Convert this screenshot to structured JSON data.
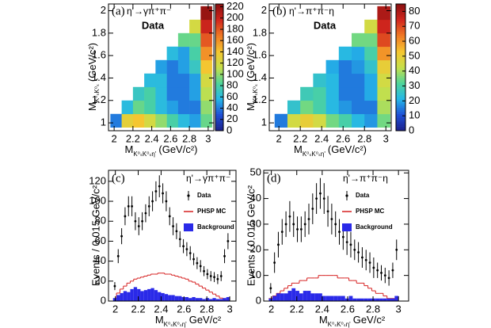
{
  "chart_data": [
    {
      "type": "heatmap",
      "label": "(a)",
      "title": "η'→γπ⁺π⁻",
      "annotation": "Data",
      "xlabel": {
        "main": "M",
        "sub": "K⁰ₛK⁰ₛη'",
        "unit": "(GeV/c²)"
      },
      "ylabel": {
        "main": "M",
        "sub": "K⁰ₛK⁰ₛ",
        "unit": "(GeV/c²)"
      },
      "xlim": [
        1.94,
        3.06
      ],
      "ylim": [
        0.93,
        2.06
      ],
      "xticks": [
        2,
        2.2,
        2.4,
        2.6,
        2.8,
        3
      ],
      "yticks": [
        1,
        1.2,
        1.4,
        1.6,
        1.8,
        2
      ],
      "xbins": [
        1.96,
        2.08,
        2.2,
        2.32,
        2.44,
        2.56,
        2.68,
        2.8,
        2.92,
        3.04
      ],
      "ybins": [
        0.96,
        1.08,
        1.2,
        1.32,
        1.44,
        1.56,
        1.68,
        1.8,
        1.92,
        2.04
      ],
      "z": [
        [
          40,
          130,
          140,
          120,
          100,
          80,
          60,
          50,
          90
        ],
        [
          null,
          60,
          90,
          80,
          60,
          50,
          40,
          40,
          100
        ],
        [
          null,
          null,
          70,
          80,
          60,
          40,
          40,
          50,
          110
        ],
        [
          null,
          null,
          null,
          60,
          60,
          40,
          40,
          50,
          120
        ],
        [
          null,
          null,
          null,
          null,
          50,
          40,
          50,
          70,
          140
        ],
        [
          null,
          null,
          null,
          null,
          null,
          60,
          50,
          80,
          160
        ],
        [
          null,
          null,
          null,
          null,
          null,
          null,
          90,
          90,
          180
        ],
        [
          null,
          null,
          null,
          null,
          null,
          null,
          null,
          120,
          200
        ],
        [
          null,
          null,
          null,
          null,
          null,
          null,
          null,
          null,
          220
        ]
      ],
      "zlim": [
        0,
        225
      ],
      "zticks": [
        0,
        20,
        40,
        60,
        80,
        100,
        120,
        140,
        160,
        180,
        200,
        220
      ],
      "colormap": [
        "#1b1f8a",
        "#1f4fd6",
        "#25b7e8",
        "#4fd49a",
        "#c7e04a",
        "#f5c530",
        "#f07a24",
        "#d2261e",
        "#8a1010"
      ]
    },
    {
      "type": "heatmap",
      "label": "(b)",
      "title": "η'→π⁺π⁻η",
      "annotation": "Data",
      "xlabel": {
        "main": "M",
        "sub": "K⁰ₛK⁰ₛη'",
        "unit": "(GeV/c²)"
      },
      "ylabel": {
        "main": "M",
        "sub": "K⁰ₛK⁰ₛ",
        "unit": "(GeV/c²)"
      },
      "xlim": [
        1.91,
        3.05
      ],
      "ylim": [
        0.93,
        2.06
      ],
      "xticks": [
        2,
        2.2,
        2.4,
        2.6,
        2.8,
        3
      ],
      "yticks": [
        1,
        1.2,
        1.4,
        1.6,
        1.8,
        2
      ],
      "xbins": [
        1.96,
        2.08,
        2.2,
        2.32,
        2.44,
        2.56,
        2.68,
        2.8,
        2.92,
        3.04
      ],
      "ybins": [
        0.96,
        1.08,
        1.2,
        1.32,
        1.44,
        1.56,
        1.68,
        1.8,
        1.92,
        2.04
      ],
      "z": [
        [
          15,
          45,
          50,
          45,
          35,
          30,
          22,
          18,
          35
        ],
        [
          null,
          25,
          35,
          30,
          22,
          18,
          15,
          15,
          40
        ],
        [
          null,
          null,
          28,
          30,
          22,
          15,
          15,
          20,
          42
        ],
        [
          null,
          null,
          null,
          25,
          22,
          15,
          15,
          20,
          45
        ],
        [
          null,
          null,
          null,
          null,
          20,
          15,
          18,
          25,
          50
        ],
        [
          null,
          null,
          null,
          null,
          null,
          22,
          20,
          30,
          60
        ],
        [
          null,
          null,
          null,
          null,
          null,
          null,
          35,
          35,
          70
        ],
        [
          null,
          null,
          null,
          null,
          null,
          null,
          null,
          45,
          75
        ],
        [
          null,
          null,
          null,
          null,
          null,
          null,
          null,
          null,
          80
        ]
      ],
      "zlim": [
        0,
        85
      ],
      "zticks": [
        0,
        10,
        20,
        30,
        40,
        50,
        60,
        70,
        80
      ],
      "colormap": [
        "#1b1f8a",
        "#1f4fd6",
        "#25b7e8",
        "#4fd49a",
        "#c7e04a",
        "#f5c530",
        "#f07a24",
        "#d2261e",
        "#8a1010"
      ]
    },
    {
      "type": "histogram",
      "label": "(c)",
      "title": "η'→γπ⁺π⁻",
      "xlabel": {
        "main": "M",
        "sub": "K⁰ₛK⁰ₛη'",
        "unit": "GeV/c²"
      },
      "ylabel": "Events / 0.015 GeV/c²",
      "xlim": [
        1.94,
        3.055
      ],
      "ylim": [
        0,
        131
      ],
      "xticks": [
        2,
        2.2,
        2.4,
        2.6,
        2.8,
        3
      ],
      "yticks": [
        0,
        20,
        40,
        60,
        80,
        100,
        120
      ],
      "x": [
        1.995,
        2.025,
        2.055,
        2.085,
        2.115,
        2.145,
        2.175,
        2.205,
        2.235,
        2.265,
        2.295,
        2.325,
        2.355,
        2.385,
        2.415,
        2.445,
        2.475,
        2.505,
        2.535,
        2.565,
        2.595,
        2.625,
        2.655,
        2.685,
        2.715,
        2.745,
        2.775,
        2.805,
        2.835,
        2.865,
        2.895,
        2.925,
        2.955,
        2.985
      ],
      "series": [
        {
          "name": "Data",
          "kind": "errorbar",
          "color": "#000000",
          "values": [
            15,
            45,
            65,
            85,
            95,
            95,
            80,
            75,
            80,
            88,
            95,
            100,
            110,
            115,
            108,
            100,
            85,
            75,
            70,
            62,
            55,
            52,
            48,
            42,
            38,
            35,
            30,
            27,
            25,
            24,
            22,
            25,
            45,
            60
          ],
          "errors": [
            4,
            7,
            8,
            9,
            10,
            10,
            9,
            9,
            9,
            9,
            10,
            10,
            10,
            11,
            10,
            10,
            9,
            9,
            8,
            8,
            7,
            7,
            7,
            6,
            6,
            6,
            5,
            5,
            5,
            5,
            5,
            5,
            7,
            8
          ]
        },
        {
          "name": "PHSP MC",
          "kind": "step",
          "color": "#d62020",
          "values": [
            2,
            8,
            12,
            15,
            18,
            20,
            22,
            23,
            24,
            25,
            26,
            27,
            27,
            28,
            28,
            27,
            27,
            26,
            25,
            24,
            23,
            22,
            20,
            19,
            17,
            15,
            13,
            11,
            9,
            7,
            5,
            3,
            1,
            0
          ]
        },
        {
          "name": "Background",
          "kind": "bar",
          "color": "#2a2ae8",
          "values": [
            3,
            6,
            8,
            10,
            9,
            12,
            14,
            12,
            10,
            11,
            12,
            13,
            11,
            9,
            8,
            7,
            6,
            6,
            5,
            5,
            4,
            4,
            3,
            4,
            3,
            3,
            2,
            3,
            2,
            3,
            2,
            2,
            3,
            4
          ]
        }
      ]
    },
    {
      "type": "histogram",
      "label": "(d)",
      "title": "η'→π⁺π⁻η",
      "xlabel": {
        "main": "M",
        "sub": "K⁰ₛK⁰ₛη'",
        "unit": "GeV/c²"
      },
      "ylabel": "Events / 0.015 GeV/c²",
      "xlim": [
        1.94,
        3.08
      ],
      "ylim": [
        0,
        51
      ],
      "xticks": [
        2,
        2.2,
        2.4,
        2.6,
        2.8,
        3
      ],
      "yticks": [
        0,
        10,
        20,
        30,
        40,
        50
      ],
      "x": [
        1.995,
        2.025,
        2.055,
        2.085,
        2.115,
        2.145,
        2.175,
        2.205,
        2.235,
        2.265,
        2.295,
        2.325,
        2.355,
        2.385,
        2.415,
        2.445,
        2.475,
        2.505,
        2.535,
        2.565,
        2.595,
        2.625,
        2.655,
        2.685,
        2.715,
        2.745,
        2.775,
        2.805,
        2.835,
        2.865,
        2.895,
        2.925,
        2.955,
        2.985
      ],
      "series": [
        {
          "name": "Data",
          "kind": "errorbar",
          "color": "#000000",
          "values": [
            5,
            15,
            22,
            27,
            30,
            33,
            30,
            28,
            28,
            30,
            32,
            36,
            40,
            42,
            40,
            35,
            32,
            30,
            27,
            25,
            23,
            22,
            20,
            19,
            17,
            16,
            15,
            13,
            12,
            11,
            10,
            9,
            12,
            20
          ],
          "errors": [
            2,
            4,
            5,
            5,
            5,
            6,
            5,
            5,
            5,
            5,
            6,
            6,
            6,
            6,
            6,
            6,
            6,
            5,
            5,
            5,
            5,
            5,
            4,
            4,
            4,
            4,
            4,
            4,
            3,
            3,
            3,
            3,
            3,
            4
          ]
        },
        {
          "name": "PHSP MC",
          "kind": "step",
          "color": "#d62020",
          "values": [
            1,
            2,
            3,
            4,
            5,
            6,
            7,
            7,
            8,
            8,
            9,
            9,
            9,
            10,
            10,
            10,
            10,
            10,
            9,
            9,
            9,
            8,
            8,
            7,
            7,
            6,
            5,
            4,
            3,
            3,
            2,
            1,
            1,
            0
          ]
        },
        {
          "name": "Background",
          "kind": "bar",
          "color": "#2a2ae8",
          "values": [
            1,
            2,
            3,
            3,
            3,
            4,
            5,
            4,
            3,
            4,
            4,
            3,
            3,
            3,
            2,
            2,
            2,
            2,
            2,
            2,
            1,
            2,
            1,
            1,
            1,
            1,
            1,
            1,
            1,
            1,
            1,
            1,
            1,
            2
          ]
        }
      ]
    }
  ]
}
